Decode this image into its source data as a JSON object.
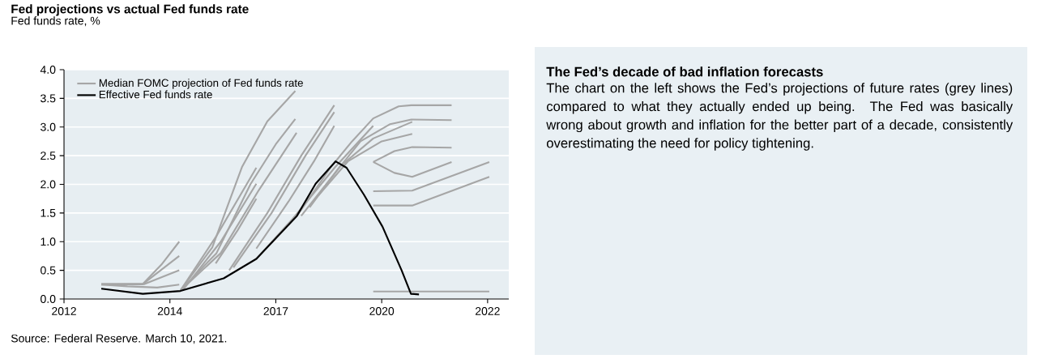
{
  "chart_data": [
    {
      "type": "line",
      "title": "Fed projections vs actual Fed funds rate",
      "ylabel": "Fed funds rate, %",
      "xlim": [
        2012,
        2022.5
      ],
      "ylim": [
        0,
        4
      ],
      "xticks": [
        {
          "value": 2012,
          "label": "2012"
        },
        {
          "value": 2014.5,
          "label": "2014"
        },
        {
          "value": 2017,
          "label": "2017"
        },
        {
          "value": 2019.5,
          "label": "2020"
        },
        {
          "value": 2022,
          "label": "2022"
        }
      ],
      "yticks": [
        {
          "value": 0,
          "label": "0.0"
        },
        {
          "value": 0.5,
          "label": "0.5"
        },
        {
          "value": 1,
          "label": "1.0"
        },
        {
          "value": 1.5,
          "label": "1.5"
        },
        {
          "value": 2,
          "label": "2.0"
        },
        {
          "value": 2.5,
          "label": "2.5"
        },
        {
          "value": 3,
          "label": "3.0"
        },
        {
          "value": 3.5,
          "label": "3.5"
        },
        {
          "value": 4,
          "label": "4.0"
        }
      ],
      "grid": "y",
      "legend": "top left",
      "marker": "none",
      "line_style": "solid",
      "annotations": [
        "Source: Federal Reserve. March 10, 2021."
      ],
      "series": [
        {
          "name": "Median FOMC projection of Fed funds rate",
          "color": "#a6a6a6",
          "x": [
            2012.88,
            2013.86,
            2014.3,
            2014.72
          ],
          "values": [
            0.26,
            0.26,
            0.6,
            1.0
          ]
        },
        {
          "color": "#a6a6a6",
          "x": [
            2012.88,
            2013.86,
            2014.72
          ],
          "values": [
            0.26,
            0.26,
            0.75
          ]
        },
        {
          "color": "#a6a6a6",
          "x": [
            2012.88,
            2013.9,
            2014.72
          ],
          "values": [
            0.25,
            0.26,
            0.5
          ]
        },
        {
          "color": "#a6a6a6",
          "x": [
            2012.88,
            2013.5,
            2014.2,
            2014.72
          ],
          "values": [
            0.25,
            0.22,
            0.2,
            0.25
          ]
        },
        {
          "color": "#a6a6a6",
          "x": [
            2014.75,
            2015.5,
            2016.2,
            2016.8,
            2017.46
          ],
          "values": [
            0.15,
            0.9,
            2.3,
            3.1,
            3.63
          ]
        },
        {
          "color": "#a6a6a6",
          "x": [
            2014.75,
            2015.6,
            2016.4,
            2017.0,
            2017.46
          ],
          "values": [
            0.15,
            0.8,
            2.0,
            2.7,
            3.14
          ]
        },
        {
          "color": "#a6a6a6",
          "x": [
            2014.75,
            2015.7,
            2016.6,
            2017.49
          ],
          "values": [
            0.15,
            0.8,
            1.9,
            2.9
          ]
        },
        {
          "color": "#a6a6a6",
          "x": [
            2014.75,
            2015.6,
            2016.54
          ],
          "values": [
            0.15,
            1.1,
            2.29
          ]
        },
        {
          "color": "#a6a6a6",
          "x": [
            2014.8,
            2015.7,
            2016.54
          ],
          "values": [
            0.15,
            1.0,
            2.01
          ]
        },
        {
          "color": "#a6a6a6",
          "x": [
            2015.58,
            2016.1,
            2016.54
          ],
          "values": [
            0.62,
            1.2,
            1.75
          ]
        },
        {
          "color": "#a6a6a6",
          "x": [
            2015.9,
            2016.8,
            2017.6,
            2018.38
          ],
          "values": [
            0.5,
            1.5,
            2.5,
            3.38
          ]
        },
        {
          "color": "#a6a6a6",
          "x": [
            2016.0,
            2016.9,
            2017.7,
            2018.38
          ],
          "values": [
            0.55,
            1.5,
            2.5,
            3.26
          ]
        },
        {
          "color": "#a6a6a6",
          "x": [
            2016.54,
            2017.3,
            2017.9,
            2018.38
          ],
          "values": [
            0.88,
            1.7,
            2.4,
            3.02
          ]
        },
        {
          "color": "#a6a6a6",
          "x": [
            2016.54,
            2017.4,
            2018.4,
            2019.3
          ],
          "values": [
            0.7,
            1.4,
            2.3,
            3.02
          ]
        },
        {
          "color": "#a6a6a6",
          "x": [
            2017.5,
            2018.3,
            2018.8,
            2019.3,
            2019.9,
            2020.2,
            2021.15
          ],
          "values": [
            1.45,
            2.3,
            2.75,
            3.15,
            3.36,
            3.38,
            3.38
          ]
        },
        {
          "color": "#a6a6a6",
          "x": [
            2017.6,
            2018.4,
            2019.0,
            2019.7,
            2020.2,
            2021.15
          ],
          "values": [
            1.45,
            2.2,
            2.75,
            3.05,
            3.13,
            3.12
          ]
        },
        {
          "color": "#a6a6a6",
          "x": [
            2017.8,
            2018.5,
            2019.3,
            2020.22
          ],
          "values": [
            1.6,
            2.3,
            2.8,
            3.09
          ]
        },
        {
          "color": "#a6a6a6",
          "x": [
            2018.0,
            2018.7,
            2019.5,
            2020.22
          ],
          "values": [
            1.8,
            2.4,
            2.75,
            2.88
          ]
        },
        {
          "color": "#a6a6a6",
          "x": [
            2019.3,
            2019.8,
            2020.22,
            2021.15
          ],
          "values": [
            2.39,
            2.58,
            2.65,
            2.64
          ]
        },
        {
          "color": "#a6a6a6",
          "x": [
            2019.3,
            2019.8,
            2020.22,
            2021.15
          ],
          "values": [
            2.39,
            2.2,
            2.13,
            2.39
          ]
        },
        {
          "color": "#a6a6a6",
          "x": [
            2019.3,
            2020.22,
            2022.04
          ],
          "values": [
            1.88,
            1.89,
            2.39
          ]
        },
        {
          "color": "#a6a6a6",
          "x": [
            2019.3,
            2020.22,
            2022.04
          ],
          "values": [
            1.63,
            1.63,
            2.13
          ]
        },
        {
          "color": "#a6a6a6",
          "x": [
            2019.3,
            2022.04
          ],
          "values": [
            0.13,
            0.13
          ]
        },
        {
          "name": "Effective Fed funds rate",
          "color": "#000000",
          "x": [
            2012.88,
            2013.86,
            2014.75,
            2015.77,
            2016.54,
            2017.49,
            2017.94,
            2018.41,
            2018.67,
            2019.08,
            2019.52,
            2019.97,
            2020.19,
            2020.38
          ],
          "values": [
            0.18,
            0.09,
            0.14,
            0.36,
            0.7,
            1.44,
            2.01,
            2.4,
            2.29,
            1.82,
            1.26,
            0.5,
            0.09,
            0.08
          ]
        }
      ]
    },
    {
      "type": "other",
      "title": "The Fed’s decade of bad inflation forecasts",
      "annotations": [
        "The chart on the left shows the Fed’s projections of future rates (grey lines) compared to what they actually ended up being.  The Fed was basically wrong about growth and inflation for the better part of a decade, consistently overestimating the need for policy tightening."
      ]
    }
  ]
}
